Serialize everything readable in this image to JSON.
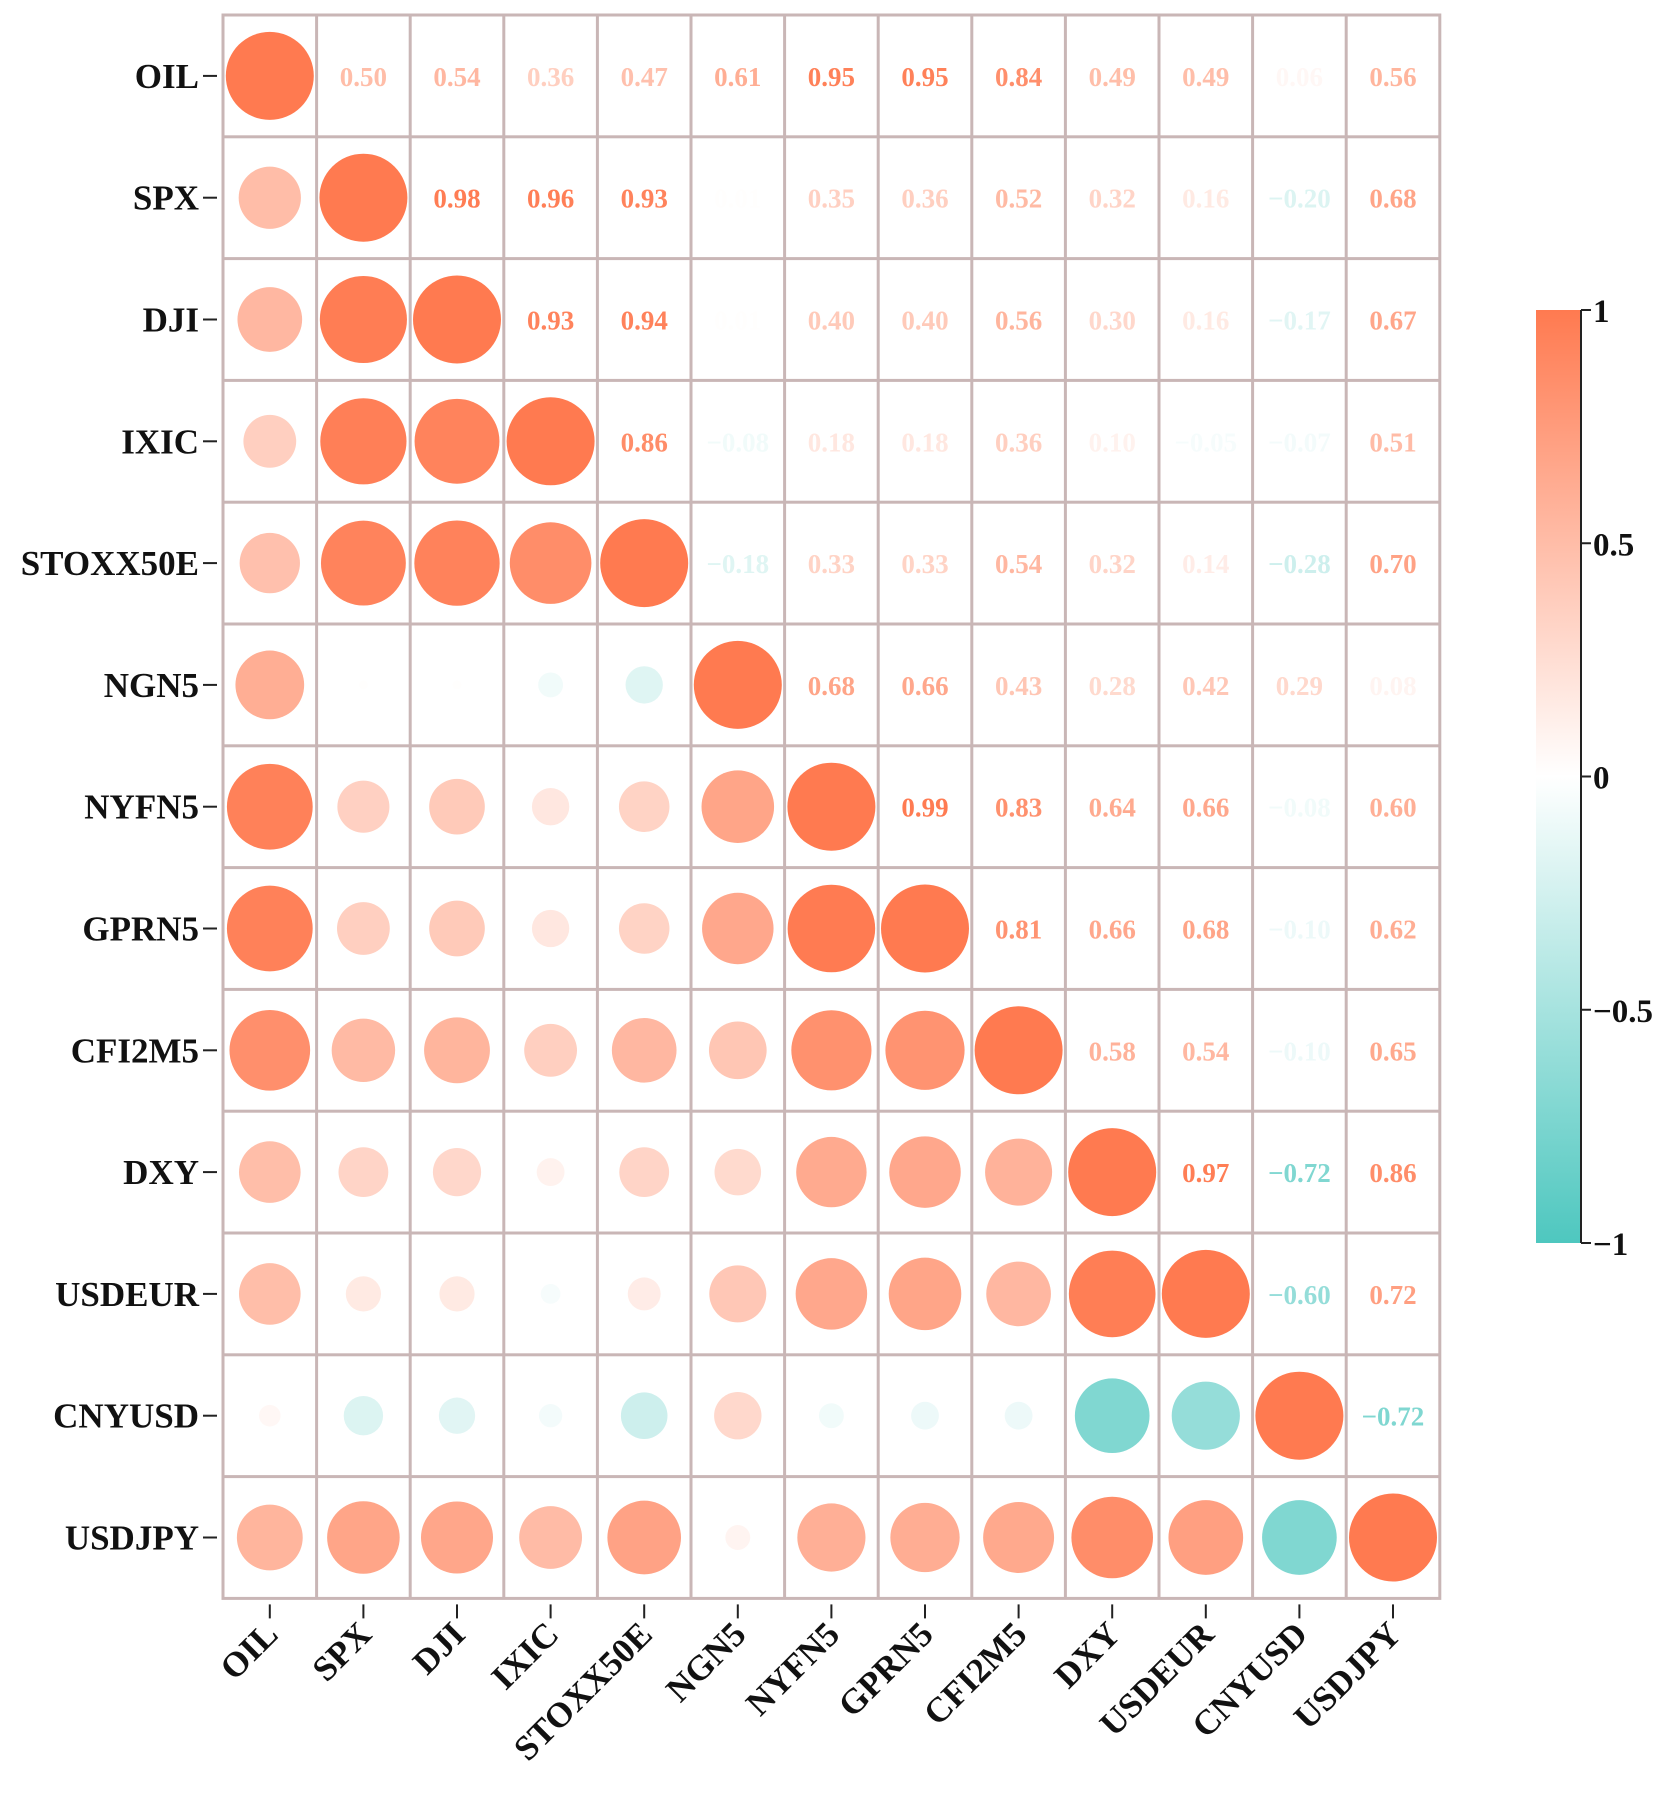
{
  "chart_data": {
    "type": "heatmap",
    "variant": "correlation-matrix",
    "lower_triangle": "circles",
    "upper_triangle": "numbers",
    "title": "",
    "labels": [
      "OIL",
      "SPX",
      "DJI",
      "IXIC",
      "STOXX50E",
      "NGN5",
      "NYFN5",
      "GPRN5",
      "CFI2M5",
      "DXY",
      "USDEUR",
      "CNYUSD",
      "USDJPY"
    ],
    "matrix": [
      [
        1.0,
        0.5,
        0.54,
        0.36,
        0.47,
        0.61,
        0.95,
        0.95,
        0.84,
        0.49,
        0.49,
        0.06,
        0.56
      ],
      [
        0.5,
        1.0,
        0.98,
        0.96,
        0.93,
        0.01,
        0.35,
        0.36,
        0.52,
        0.32,
        0.16,
        -0.2,
        0.68
      ],
      [
        0.54,
        0.98,
        1.0,
        0.93,
        0.94,
        0.01,
        0.4,
        0.4,
        0.56,
        0.3,
        0.16,
        -0.17,
        0.67
      ],
      [
        0.36,
        0.96,
        0.93,
        1.0,
        0.86,
        -0.08,
        0.18,
        0.18,
        0.36,
        0.1,
        -0.05,
        -0.07,
        0.51
      ],
      [
        0.47,
        0.93,
        0.94,
        0.86,
        1.0,
        -0.18,
        0.33,
        0.33,
        0.54,
        0.32,
        0.14,
        -0.28,
        0.7
      ],
      [
        0.61,
        0.01,
        0.01,
        -0.08,
        -0.18,
        1.0,
        0.68,
        0.66,
        0.43,
        0.28,
        0.42,
        0.29,
        0.08
      ],
      [
        0.95,
        0.35,
        0.4,
        0.18,
        0.33,
        0.68,
        1.0,
        0.99,
        0.83,
        0.64,
        0.66,
        -0.08,
        0.6
      ],
      [
        0.95,
        0.36,
        0.4,
        0.18,
        0.33,
        0.66,
        0.99,
        1.0,
        0.81,
        0.66,
        0.68,
        -0.1,
        0.62
      ],
      [
        0.84,
        0.52,
        0.56,
        0.36,
        0.54,
        0.43,
        0.83,
        0.81,
        1.0,
        0.58,
        0.54,
        -0.1,
        0.65
      ],
      [
        0.49,
        0.32,
        0.3,
        0.1,
        0.32,
        0.28,
        0.64,
        0.66,
        0.58,
        1.0,
        0.97,
        -0.72,
        0.86
      ],
      [
        0.49,
        0.16,
        0.16,
        -0.05,
        0.14,
        0.42,
        0.66,
        0.68,
        0.54,
        0.97,
        1.0,
        -0.6,
        0.72
      ],
      [
        0.06,
        -0.2,
        -0.17,
        -0.07,
        -0.28,
        0.29,
        -0.08,
        -0.1,
        -0.1,
        -0.72,
        -0.6,
        1.0,
        -0.72
      ],
      [
        0.56,
        0.68,
        0.67,
        0.51,
        0.7,
        0.08,
        0.6,
        0.62,
        0.65,
        0.86,
        0.72,
        -0.72,
        1.0
      ]
    ],
    "value_format": "2 decimals, unicode minus",
    "color_scale": {
      "min": -1,
      "max": 1,
      "low_color": "#4ec7bf",
      "mid_color": "#ffffff",
      "high_color": "#ff7a50"
    },
    "colorbar": {
      "ticks": [
        1,
        0.5,
        0,
        -0.5,
        -1
      ],
      "tick_labels": [
        "1",
        "0.5",
        "0",
        "−0.5",
        "−1"
      ],
      "placement": "right"
    },
    "grid_color": "#c9b6b6"
  }
}
